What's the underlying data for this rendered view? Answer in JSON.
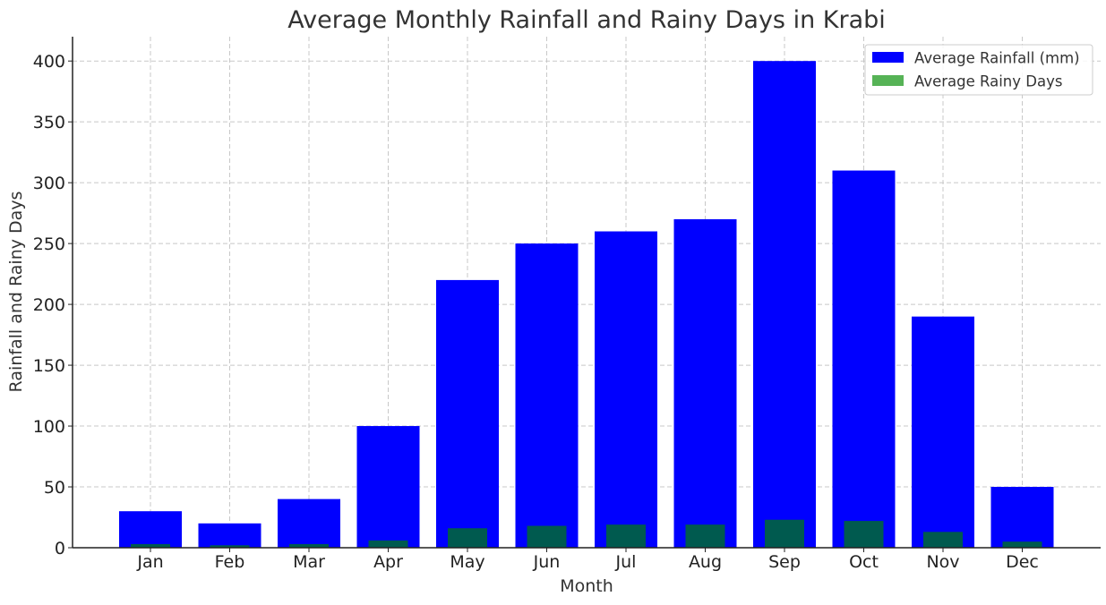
{
  "chart_data": {
    "type": "bar",
    "title": "Average Monthly Rainfall and Rainy Days in Krabi",
    "xlabel": "Month",
    "ylabel": "Rainfall and Rainy Days",
    "categories": [
      "Jan",
      "Feb",
      "Mar",
      "Apr",
      "May",
      "Jun",
      "Jul",
      "Aug",
      "Sep",
      "Oct",
      "Nov",
      "Dec"
    ],
    "series": [
      {
        "name": "Average Rainfall (mm)",
        "color": "#0000ff",
        "values": [
          30,
          20,
          40,
          100,
          220,
          250,
          260,
          270,
          400,
          310,
          190,
          50
        ]
      },
      {
        "name": "Average Rainy Days",
        "color": "#2ca02c",
        "overlap_color": "#005a4f",
        "values": [
          3,
          2,
          3,
          6,
          16,
          18,
          19,
          19,
          23,
          22,
          13,
          5
        ]
      }
    ],
    "ylim": [
      0,
      420
    ],
    "yticks": [
      0,
      50,
      100,
      150,
      200,
      250,
      300,
      350,
      400
    ],
    "grid": true,
    "legend_position": "top-right"
  }
}
